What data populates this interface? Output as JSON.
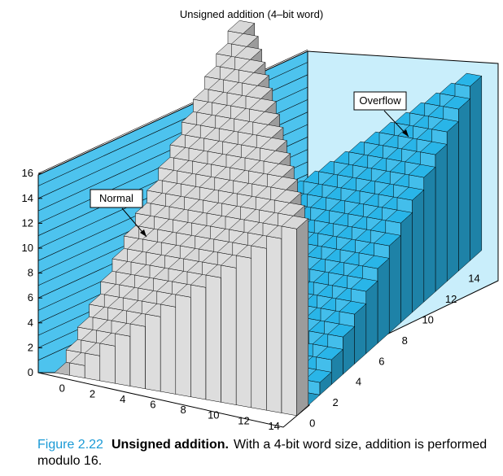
{
  "chart_data": {
    "type": "bar3d",
    "title": "Unsigned addition (4–bit word)",
    "x": {
      "label": "",
      "ticks": [
        0,
        2,
        4,
        6,
        8,
        10,
        12,
        14
      ],
      "range": [
        0,
        15
      ]
    },
    "y": {
      "label": "",
      "ticks": [
        0,
        2,
        4,
        6,
        8,
        10,
        12,
        14
      ],
      "range": [
        0,
        15
      ]
    },
    "z": {
      "label": "",
      "ticks": [
        0,
        2,
        4,
        6,
        8,
        10,
        12,
        14,
        16
      ],
      "range": [
        0,
        16
      ]
    },
    "value_rule": "(x + y) mod 16",
    "annotations": [
      {
        "id": "normal",
        "text": "Normal"
      },
      {
        "id": "overflow",
        "text": "Overflow"
      }
    ],
    "colors": {
      "normal_wall": "#4dc3ee",
      "overflow_wall": "#c9eefb",
      "normal_bars": "#d8d8d8",
      "overflow_bars": "#29b5e8"
    }
  },
  "caption": {
    "number": "Figure 2.22",
    "heading": "Unsigned addition.",
    "text": "With a 4-bit word size, addition is performed modulo 16."
  }
}
